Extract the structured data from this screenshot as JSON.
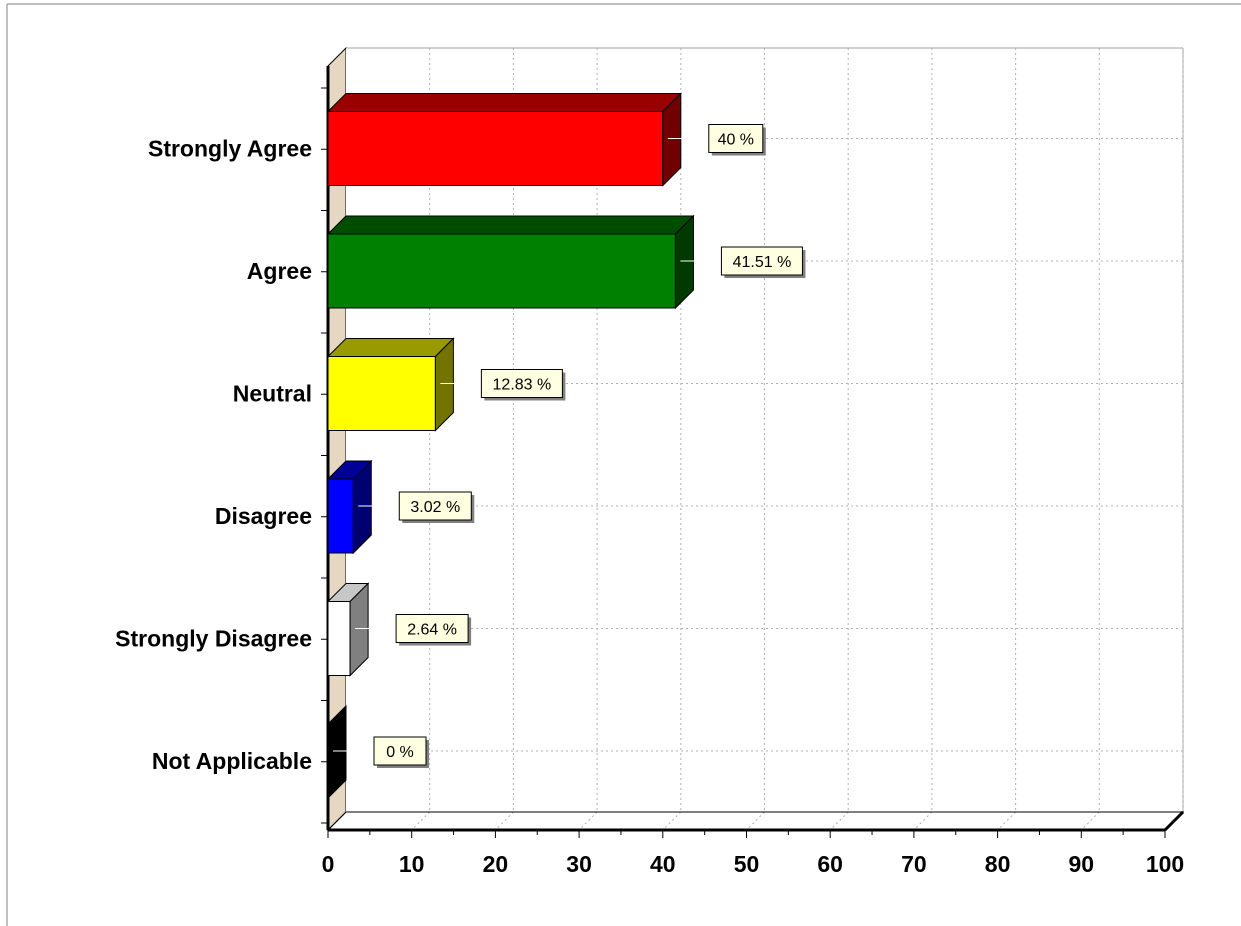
{
  "chart_data": {
    "type": "bar",
    "orientation": "horizontal",
    "style": "3d",
    "categories": [
      "Strongly Agree",
      "Agree",
      "Neutral",
      "Disagree",
      "Strongly Disagree",
      "Not Applicable"
    ],
    "values": [
      40,
      41.51,
      12.83,
      3.02,
      2.64,
      0
    ],
    "data_labels": [
      "40 %",
      "41.51 %",
      "12.83 %",
      "3.02 %",
      "2.64 %",
      "0 %"
    ],
    "colors": [
      "#ff0000",
      "#008000",
      "#ffff00",
      "#0000ff",
      "#ffffff",
      "#000000"
    ],
    "xlim": [
      0,
      100
    ],
    "x_ticks": [
      0,
      10,
      20,
      30,
      40,
      50,
      60,
      70,
      80,
      90,
      100
    ],
    "tick_labels": [
      "0",
      "10",
      "20",
      "30",
      "40",
      "50",
      "60",
      "70",
      "80",
      "90",
      "100"
    ],
    "grid": true,
    "title": "",
    "xlabel": "",
    "ylabel": ""
  }
}
